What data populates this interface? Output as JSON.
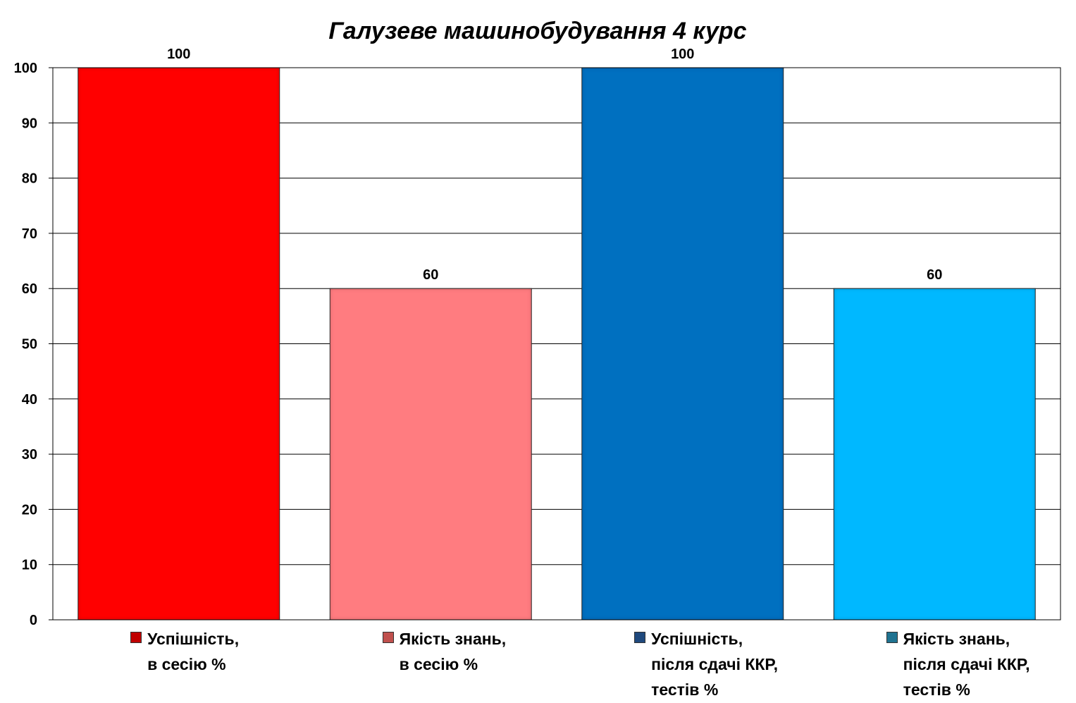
{
  "chart_data": {
    "type": "bar",
    "title": "Галузеве машинобудування 4 курс",
    "ylim": [
      0,
      100
    ],
    "yticks": [
      0,
      10,
      20,
      30,
      40,
      50,
      60,
      70,
      80,
      90,
      100
    ],
    "grid": true,
    "legend_position": "bottom",
    "series": [
      {
        "name_lines": [
          "Успішність,",
          "в сесію %"
        ],
        "value": 100,
        "label": "100",
        "color": "#ff0000",
        "swatch": "#c00000"
      },
      {
        "name_lines": [
          "Якість знань,",
          "в сесію %"
        ],
        "value": 60,
        "label": "60",
        "color": "#ff7c80",
        "swatch": "#c0504d"
      },
      {
        "name_lines": [
          "Успішність,",
          "після сдачі ККР,",
          "тестів %"
        ],
        "value": 100,
        "label": "100",
        "color": "#0070c0",
        "swatch": "#1f497d"
      },
      {
        "name_lines": [
          "Якість знань,",
          "після сдачі ККР,",
          "тестів %"
        ],
        "value": 60,
        "label": "60",
        "color": "#00b8ff",
        "swatch": "#1f7391"
      }
    ]
  }
}
